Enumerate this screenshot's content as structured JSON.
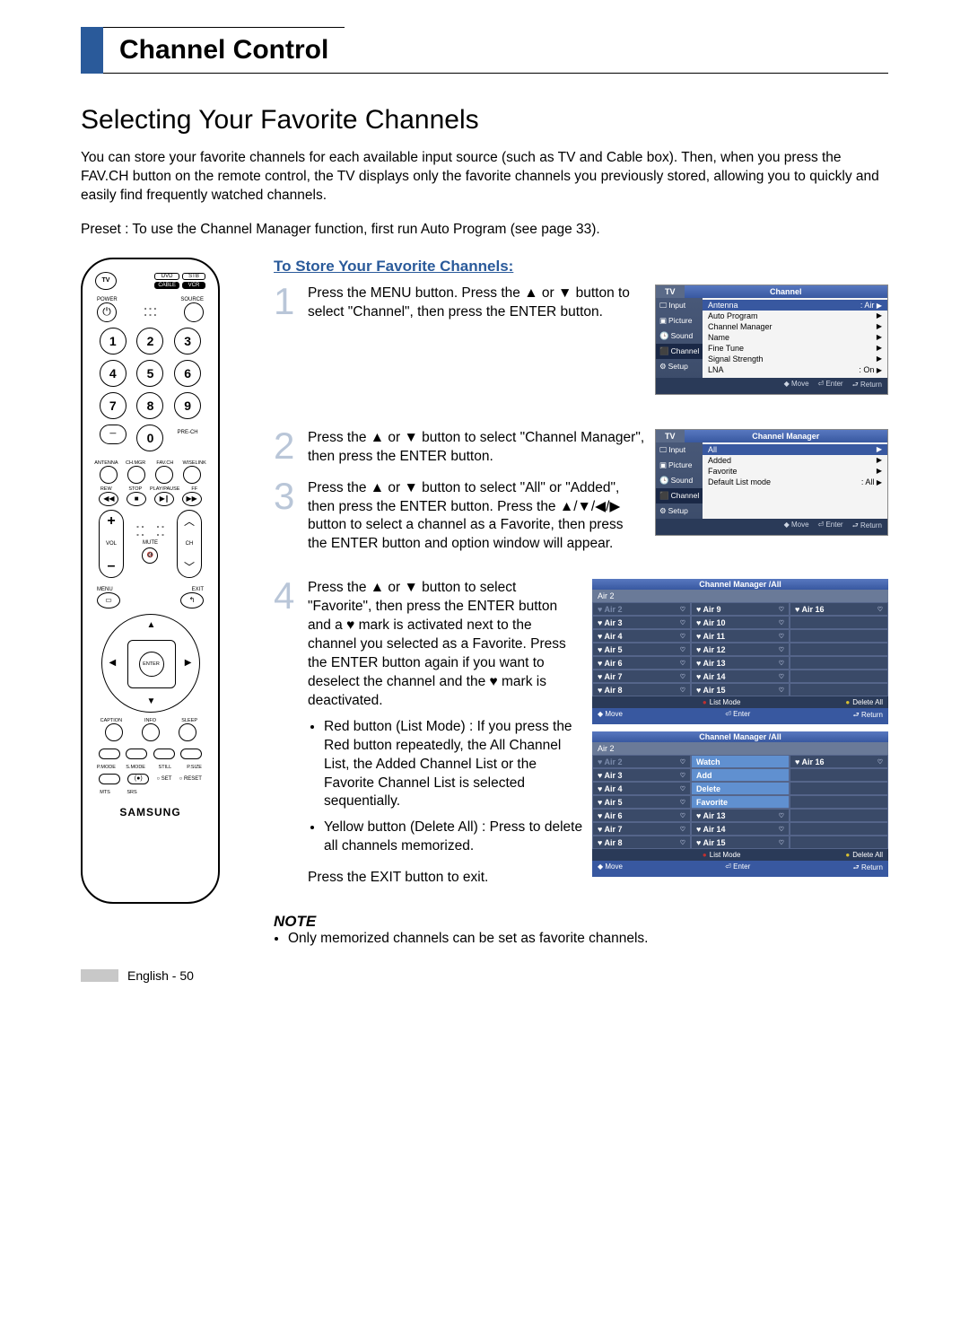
{
  "header": {
    "title": "Channel Control"
  },
  "subtitle": "Selecting Your Favorite Channels",
  "intro": "You can store your favorite channels for each available input source (such as TV and Cable box). Then, when you press the FAV.CH button on the remote control, the TV displays only the favorite channels you previously stored, allowing you to quickly and easily find frequently watched channels.",
  "preset": "Preset : To use the Channel Manager function, first run Auto Program (see page 33).",
  "procedure_title": "To Store Your Favorite Channels:",
  "steps": {
    "s1": "Press the MENU button. Press the ▲ or ▼ button to select \"Channel\", then press the ENTER button.",
    "s2": "Press the ▲ or ▼ button to select \"Channel Manager\", then press the ENTER button.",
    "s3": "Press the ▲ or ▼ button to select \"All\" or \"Added\", then press the ENTER button. Press the ▲/▼/◀/▶ button to select a channel as a Favorite, then press the ENTER button and option window will appear.",
    "s4_a": "Press the ▲ or ▼ button to select \"Favorite\", then press the ENTER button and a ♥ mark is activated next to the channel you selected as a Favorite. Press the ENTER button again if you want to deselect the channel and the ♥ mark is deactivated.",
    "s4_li1": "Red button (List Mode) : If you press the Red button repeatedly, the All Channel List, the Added Channel List or the Favorite Channel List is selected sequentially.",
    "s4_li2": "Yellow button (Delete All) : Press to delete all channels memorized.",
    "s4_exit": "Press the EXIT button to exit."
  },
  "note": {
    "heading": "NOTE",
    "item": "Only memorized channels can be set as favorite channels."
  },
  "footer": "English - 50",
  "remote": {
    "brand": "SAMSUNG",
    "labels": {
      "tv": "TV",
      "dvd": "DVD",
      "stb": "STB",
      "cable": "CABLE",
      "vcr": "VCR",
      "power": "POWER",
      "source": "SOURCE",
      "prech": "PRE-CH",
      "antenna": "ANTENNA",
      "chmgr": "CH.MGR",
      "favch": "FAV.CH",
      "wiselink": "WISELINK",
      "rew": "REW",
      "stop": "STOP",
      "playpause": "PLAY/PAUSE",
      "ff": "FF",
      "vol": "VOL",
      "ch": "CH",
      "mute": "MUTE",
      "menu": "MENU",
      "exit": "EXIT",
      "enter": "ENTER",
      "caption": "CAPTION",
      "info": "INFO",
      "sleep": "SLEEP",
      "pmode": "P.MODE",
      "smode": "S.MODE",
      "still": "STILL",
      "psize": "P.SIZE",
      "mts": "MTS",
      "srs": "SRS",
      "set": "SET",
      "reset": "RESET"
    },
    "nums": [
      "1",
      "2",
      "3",
      "4",
      "5",
      "6",
      "7",
      "8",
      "9",
      "0"
    ]
  },
  "osd1": {
    "tv": "TV",
    "title": "Channel",
    "side": [
      "Input",
      "Picture",
      "Sound",
      "Channel",
      "Setup"
    ],
    "items": [
      {
        "l": "Antenna",
        "r": ": Air",
        "a": "▶"
      },
      {
        "l": "Auto Program",
        "r": "",
        "a": "▶"
      },
      {
        "l": "Channel Manager",
        "r": "",
        "a": "▶"
      },
      {
        "l": "Name",
        "r": "",
        "a": "▶"
      },
      {
        "l": "Fine Tune",
        "r": "",
        "a": "▶"
      },
      {
        "l": "Signal Strength",
        "r": "",
        "a": "▶"
      },
      {
        "l": "LNA",
        "r": ": On",
        "a": "▶"
      }
    ],
    "footer": [
      "◆ Move",
      "⏎ Enter",
      "⮐ Return"
    ]
  },
  "osd2": {
    "tv": "TV",
    "title": "Channel Manager",
    "side": [
      "Input",
      "Picture",
      "Sound",
      "Channel",
      "Setup"
    ],
    "items": [
      {
        "l": "All",
        "r": "",
        "a": "▶"
      },
      {
        "l": "Added",
        "r": "",
        "a": "▶"
      },
      {
        "l": "Favorite",
        "r": "",
        "a": "▶"
      },
      {
        "l": "Default List mode",
        "r": ": All",
        "a": "▶"
      }
    ],
    "footer": [
      "◆ Move",
      "⏎ Enter",
      "⮐ Return"
    ]
  },
  "cm": {
    "title": "Channel Manager /All",
    "sub": "Air 2",
    "cols": [
      [
        "Air 2",
        "Air 3",
        "Air 4",
        "Air 5",
        "Air 6",
        "Air 7",
        "Air 8"
      ],
      [
        "Air 9",
        "Air 10",
        "Air 11",
        "Air 12",
        "Air 13",
        "Air 14",
        "Air 15"
      ],
      [
        "Air 16",
        "",
        "",
        "",
        "",
        "",
        ""
      ]
    ],
    "footer": {
      "move": "Move",
      "enter": "Enter",
      "list": "List Mode",
      "del": "Delete All",
      "ret": "Return"
    }
  },
  "cm2_overlay": [
    "Watch",
    "Add",
    "Delete",
    "Favorite"
  ]
}
